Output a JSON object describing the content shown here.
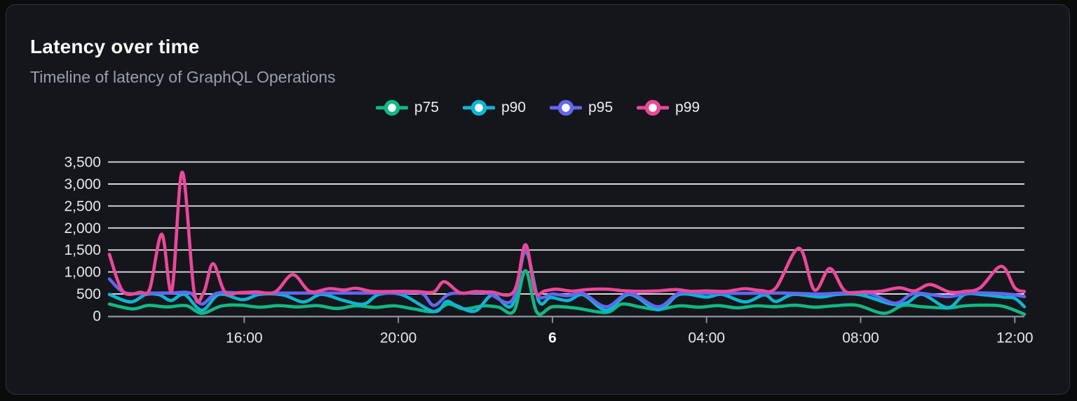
{
  "header": {
    "title": "Latency over time",
    "subtitle": "Timeline of latency of GraphQL Operations"
  },
  "colors": {
    "page_background": "#0a0b0d",
    "card_background": "#14161b",
    "card_border": "#30333a",
    "grid_line": "#e3e5ea",
    "axis_line": "#8b9098",
    "tick_mark": "#8b9098",
    "axis_label": "#e6e8ec",
    "axis_label_emphasis": "#ffffff",
    "title": "#ffffff",
    "subtitle": "#9aa0ab",
    "legend_text": "#eef0f3"
  },
  "chart_data": {
    "type": "line",
    "title": "Latency over time",
    "subtitle": "Timeline of latency of GraphQL Operations",
    "unit": "ms",
    "grid": true,
    "legend_position": "top-center",
    "x_axis": {
      "kind": "time",
      "window_hours": 23.75,
      "start_time": "12:30",
      "end_time": "12:15",
      "ticks": [
        {
          "t": 3.5,
          "label": "16:00",
          "bold": false
        },
        {
          "t": 7.5,
          "label": "20:00",
          "bold": false
        },
        {
          "t": 11.5,
          "label": "6",
          "bold": true
        },
        {
          "t": 15.5,
          "label": "04:00",
          "bold": false
        },
        {
          "t": 19.5,
          "label": "08:00",
          "bold": false
        },
        {
          "t": 23.5,
          "label": "12:00",
          "bold": false
        }
      ]
    },
    "y_axis": {
      "min": 0,
      "max": 3500,
      "ticks": [
        {
          "v": 0,
          "label": "0"
        },
        {
          "v": 500,
          "label": "500"
        },
        {
          "v": 1000,
          "label": "1,000"
        },
        {
          "v": 1500,
          "label": "1,500"
        },
        {
          "v": 2000,
          "label": "2,000"
        },
        {
          "v": 2500,
          "label": "2,500"
        },
        {
          "v": 3000,
          "label": "3,000"
        },
        {
          "v": 3500,
          "label": "3,500"
        }
      ]
    },
    "series": [
      {
        "name": "p75",
        "color": "#10b981",
        "points": [
          [
            0,
            270
          ],
          [
            0.6,
            160
          ],
          [
            1.0,
            240
          ],
          [
            1.5,
            205
          ],
          [
            2.0,
            235
          ],
          [
            2.4,
            60
          ],
          [
            2.9,
            225
          ],
          [
            3.4,
            245
          ],
          [
            3.9,
            200
          ],
          [
            4.4,
            235
          ],
          [
            4.9,
            205
          ],
          [
            5.4,
            235
          ],
          [
            5.9,
            170
          ],
          [
            6.4,
            230
          ],
          [
            6.9,
            195
          ],
          [
            7.4,
            230
          ],
          [
            7.9,
            160
          ],
          [
            8.42,
            100
          ],
          [
            8.8,
            270
          ],
          [
            9.2,
            160
          ],
          [
            9.7,
            230
          ],
          [
            10.1,
            200
          ],
          [
            10.5,
            110
          ],
          [
            10.8,
            1030
          ],
          [
            11.1,
            80
          ],
          [
            11.5,
            210
          ],
          [
            12.1,
            180
          ],
          [
            12.9,
            80
          ],
          [
            13.3,
            270
          ],
          [
            13.8,
            200
          ],
          [
            14.24,
            150
          ],
          [
            14.8,
            230
          ],
          [
            15.3,
            200
          ],
          [
            15.8,
            235
          ],
          [
            16.3,
            185
          ],
          [
            16.8,
            230
          ],
          [
            17.3,
            210
          ],
          [
            17.8,
            245
          ],
          [
            18.3,
            200
          ],
          [
            18.8,
            230
          ],
          [
            19.4,
            245
          ],
          [
            20.1,
            60
          ],
          [
            20.6,
            240
          ],
          [
            21.1,
            210
          ],
          [
            21.76,
            180
          ],
          [
            22.2,
            230
          ],
          [
            22.7,
            245
          ],
          [
            23.2,
            220
          ],
          [
            23.75,
            40
          ]
        ]
      },
      {
        "name": "p90",
        "color": "#0bb6d4",
        "points": [
          [
            0,
            490
          ],
          [
            0.55,
            320
          ],
          [
            0.95,
            490
          ],
          [
            1.3,
            480
          ],
          [
            1.6,
            350
          ],
          [
            1.95,
            490
          ],
          [
            2.4,
            130
          ],
          [
            2.85,
            490
          ],
          [
            3.45,
            370
          ],
          [
            3.9,
            490
          ],
          [
            4.5,
            480
          ],
          [
            5.04,
            320
          ],
          [
            5.5,
            490
          ],
          [
            6.09,
            350
          ],
          [
            6.6,
            270
          ],
          [
            7.0,
            490
          ],
          [
            7.6,
            480
          ],
          [
            8.42,
            100
          ],
          [
            8.75,
            330
          ],
          [
            9.0,
            240
          ],
          [
            9.49,
            110
          ],
          [
            9.95,
            480
          ],
          [
            10.45,
            240
          ],
          [
            10.8,
            1460
          ],
          [
            11.15,
            330
          ],
          [
            11.45,
            420
          ],
          [
            11.9,
            350
          ],
          [
            12.3,
            480
          ],
          [
            12.9,
            130
          ],
          [
            13.5,
            490
          ],
          [
            14.24,
            140
          ],
          [
            14.8,
            490
          ],
          [
            15.5,
            430
          ],
          [
            15.9,
            490
          ],
          [
            16.5,
            320
          ],
          [
            17.0,
            480
          ],
          [
            17.3,
            330
          ],
          [
            17.75,
            490
          ],
          [
            18.45,
            430
          ],
          [
            18.9,
            490
          ],
          [
            19.5,
            480
          ],
          [
            20.3,
            270
          ],
          [
            20.7,
            300
          ],
          [
            21.1,
            490
          ],
          [
            21.76,
            190
          ],
          [
            22.2,
            490
          ],
          [
            22.7,
            480
          ],
          [
            23.2,
            430
          ],
          [
            23.5,
            400
          ],
          [
            23.75,
            210
          ]
        ]
      },
      {
        "name": "p95",
        "color": "#6366f1",
        "points": [
          [
            0,
            840
          ],
          [
            0.4,
            530
          ],
          [
            1.0,
            520
          ],
          [
            1.6,
            525
          ],
          [
            2.1,
            520
          ],
          [
            2.4,
            270
          ],
          [
            2.8,
            520
          ],
          [
            3.5,
            520
          ],
          [
            4.5,
            520
          ],
          [
            5.5,
            520
          ],
          [
            6.5,
            520
          ],
          [
            7.5,
            520
          ],
          [
            8.1,
            515
          ],
          [
            8.42,
            240
          ],
          [
            8.8,
            490
          ],
          [
            9.2,
            515
          ],
          [
            9.8,
            520
          ],
          [
            10.45,
            350
          ],
          [
            10.8,
            1500
          ],
          [
            11.1,
            480
          ],
          [
            11.5,
            500
          ],
          [
            11.9,
            460
          ],
          [
            12.3,
            510
          ],
          [
            12.9,
            210
          ],
          [
            13.5,
            515
          ],
          [
            14.24,
            210
          ],
          [
            14.8,
            520
          ],
          [
            15.5,
            515
          ],
          [
            16.5,
            515
          ],
          [
            17.5,
            520
          ],
          [
            18.45,
            500
          ],
          [
            19.0,
            520
          ],
          [
            19.7,
            520
          ],
          [
            20.4,
            290
          ],
          [
            20.9,
            515
          ],
          [
            21.76,
            440
          ],
          [
            22.3,
            520
          ],
          [
            23.0,
            515
          ],
          [
            23.4,
            490
          ],
          [
            23.75,
            440
          ]
        ]
      },
      {
        "name": "p99",
        "color": "#ec4899",
        "points": [
          [
            0,
            1400
          ],
          [
            0.35,
            560
          ],
          [
            0.8,
            540
          ],
          [
            1.05,
            620
          ],
          [
            1.36,
            1860
          ],
          [
            1.62,
            580
          ],
          [
            1.89,
            3270
          ],
          [
            2.2,
            545
          ],
          [
            2.45,
            540
          ],
          [
            2.69,
            1190
          ],
          [
            3.0,
            545
          ],
          [
            3.4,
            535
          ],
          [
            3.8,
            545
          ],
          [
            4.3,
            545
          ],
          [
            4.76,
            940
          ],
          [
            5.2,
            560
          ],
          [
            5.7,
            620
          ],
          [
            6.09,
            590
          ],
          [
            6.4,
            630
          ],
          [
            6.8,
            560
          ],
          [
            7.2,
            555
          ],
          [
            7.6,
            560
          ],
          [
            8.0,
            555
          ],
          [
            8.42,
            545
          ],
          [
            8.69,
            780
          ],
          [
            9.1,
            530
          ],
          [
            9.5,
            555
          ],
          [
            9.9,
            545
          ],
          [
            10.5,
            555
          ],
          [
            10.8,
            1620
          ],
          [
            11.05,
            560
          ],
          [
            11.3,
            570
          ],
          [
            11.6,
            610
          ],
          [
            12.0,
            565
          ],
          [
            12.4,
            600
          ],
          [
            12.9,
            610
          ],
          [
            13.4,
            570
          ],
          [
            13.9,
            560
          ],
          [
            14.24,
            570
          ],
          [
            14.7,
            600
          ],
          [
            15.1,
            560
          ],
          [
            15.5,
            570
          ],
          [
            16.0,
            560
          ],
          [
            16.5,
            620
          ],
          [
            16.9,
            580
          ],
          [
            17.3,
            640
          ],
          [
            17.9,
            1540
          ],
          [
            18.3,
            590
          ],
          [
            18.7,
            1080
          ],
          [
            19.1,
            560
          ],
          [
            19.6,
            550
          ],
          [
            20.0,
            560
          ],
          [
            20.5,
            640
          ],
          [
            20.9,
            570
          ],
          [
            21.3,
            715
          ],
          [
            21.8,
            545
          ],
          [
            22.2,
            560
          ],
          [
            22.6,
            640
          ],
          [
            23.15,
            1130
          ],
          [
            23.5,
            640
          ],
          [
            23.75,
            555
          ]
        ]
      }
    ]
  }
}
